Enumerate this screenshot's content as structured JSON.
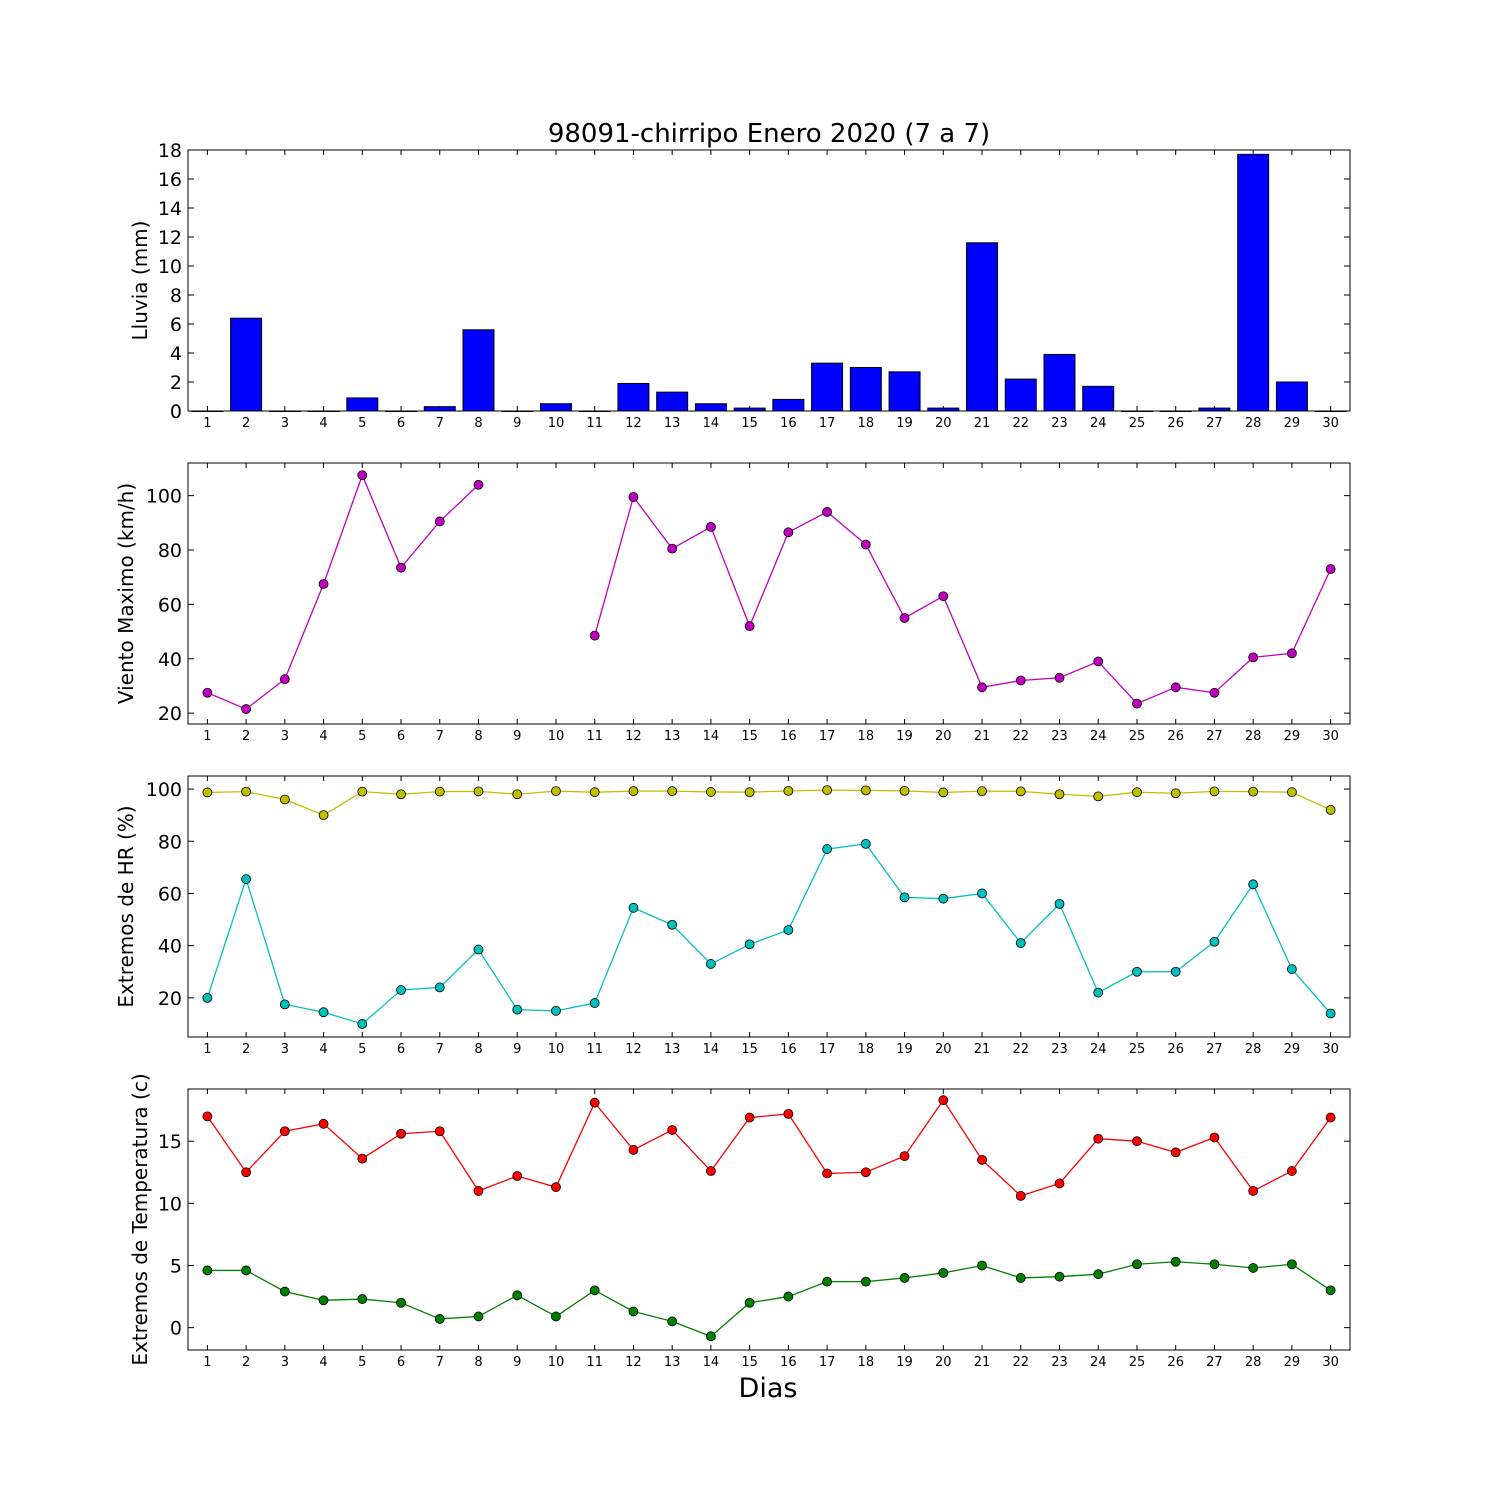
{
  "title": "98091-chirripo Enero 2020  (7 a 7)",
  "xlabel": "Dias",
  "chart_data": [
    {
      "type": "bar",
      "ylabel": "Lluvia (mm)",
      "ylim": [
        0,
        18
      ],
      "yticks": [
        0,
        2,
        4,
        6,
        8,
        10,
        12,
        14,
        16,
        18
      ],
      "categories": [
        1,
        2,
        3,
        4,
        5,
        6,
        7,
        8,
        9,
        10,
        11,
        12,
        13,
        14,
        15,
        16,
        17,
        18,
        19,
        20,
        21,
        22,
        23,
        24,
        25,
        26,
        27,
        28,
        29,
        30
      ],
      "series": [
        {
          "color": "#0000ff",
          "values": [
            0,
            6.4,
            0,
            0,
            0.9,
            0,
            0.3,
            5.6,
            0,
            0.5,
            0,
            1.9,
            1.3,
            0.5,
            0.2,
            0.8,
            3.3,
            3.0,
            2.7,
            0.2,
            11.6,
            2.2,
            3.9,
            1.7,
            0,
            0,
            0.2,
            17.7,
            2.0,
            0
          ]
        }
      ]
    },
    {
      "type": "line",
      "ylabel": "Viento Maximo (km/h)",
      "ylim": [
        16,
        112
      ],
      "yticks": [
        20,
        40,
        60,
        80,
        100
      ],
      "categories": [
        1,
        2,
        3,
        4,
        5,
        6,
        7,
        8,
        9,
        10,
        11,
        12,
        13,
        14,
        15,
        16,
        17,
        18,
        19,
        20,
        21,
        22,
        23,
        24,
        25,
        26,
        27,
        28,
        29,
        30
      ],
      "series": [
        {
          "color": "#bf00bf",
          "values": [
            27.5,
            21.5,
            32.5,
            67.5,
            107.5,
            73.5,
            90.5,
            104,
            null,
            null,
            48.5,
            99.5,
            80.5,
            88.5,
            52,
            86.5,
            94,
            82,
            55,
            63,
            29.5,
            32,
            33,
            39,
            23.5,
            29.5,
            27.5,
            40.5,
            42,
            73
          ]
        }
      ]
    },
    {
      "type": "line",
      "ylabel": "Extremos de HR (%)",
      "ylim": [
        5,
        105
      ],
      "yticks": [
        20,
        40,
        60,
        80,
        100
      ],
      "categories": [
        1,
        2,
        3,
        4,
        5,
        6,
        7,
        8,
        9,
        10,
        11,
        12,
        13,
        14,
        15,
        16,
        17,
        18,
        19,
        20,
        21,
        22,
        23,
        24,
        25,
        26,
        27,
        28,
        29,
        30
      ],
      "series": [
        {
          "color": "#bfbf00",
          "values": [
            98.7,
            99,
            96,
            90,
            99,
            98,
            99,
            99.1,
            98,
            99.2,
            98.8,
            99.2,
            99.2,
            98.9,
            98.8,
            99.3,
            99.6,
            99.5,
            99.3,
            98.7,
            99.2,
            99.1,
            98,
            97.2,
            98.8,
            98.4,
            99.1,
            99,
            98.8,
            92
          ]
        },
        {
          "color": "#00bfbf",
          "values": [
            20,
            65.5,
            17.5,
            14.5,
            10,
            23,
            24,
            38.5,
            15.5,
            15,
            18,
            54.5,
            48,
            33,
            40.5,
            46,
            77,
            79,
            58.5,
            58,
            60,
            41,
            56,
            22,
            30,
            30,
            41.5,
            63.5,
            31,
            14
          ]
        }
      ]
    },
    {
      "type": "line",
      "ylabel": "Extremos de Temperatura (c)",
      "ylim": [
        -1.8,
        19.2
      ],
      "yticks": [
        0,
        5,
        10,
        15
      ],
      "categories": [
        1,
        2,
        3,
        4,
        5,
        6,
        7,
        8,
        9,
        10,
        11,
        12,
        13,
        14,
        15,
        16,
        17,
        18,
        19,
        20,
        21,
        22,
        23,
        24,
        25,
        26,
        27,
        28,
        29,
        30
      ],
      "series": [
        {
          "color": "#ff0000",
          "values": [
            17,
            12.5,
            15.8,
            16.4,
            13.6,
            15.6,
            15.8,
            11,
            12.2,
            11.3,
            18.1,
            14.3,
            15.9,
            12.6,
            16.9,
            17.2,
            12.4,
            12.5,
            13.8,
            18.3,
            13.5,
            10.6,
            11.6,
            15.2,
            15,
            14.1,
            15.3,
            11,
            12.6,
            16.9
          ]
        },
        {
          "color": "#008000",
          "values": [
            4.6,
            4.6,
            2.9,
            2.2,
            2.3,
            2,
            0.7,
            0.9,
            2.6,
            0.9,
            3,
            1.3,
            0.5,
            -0.7,
            2,
            2.5,
            3.7,
            3.7,
            4,
            4.4,
            5,
            4,
            4.1,
            4.3,
            5.1,
            5.3,
            5.1,
            4.8,
            5.1,
            3
          ]
        }
      ]
    }
  ]
}
